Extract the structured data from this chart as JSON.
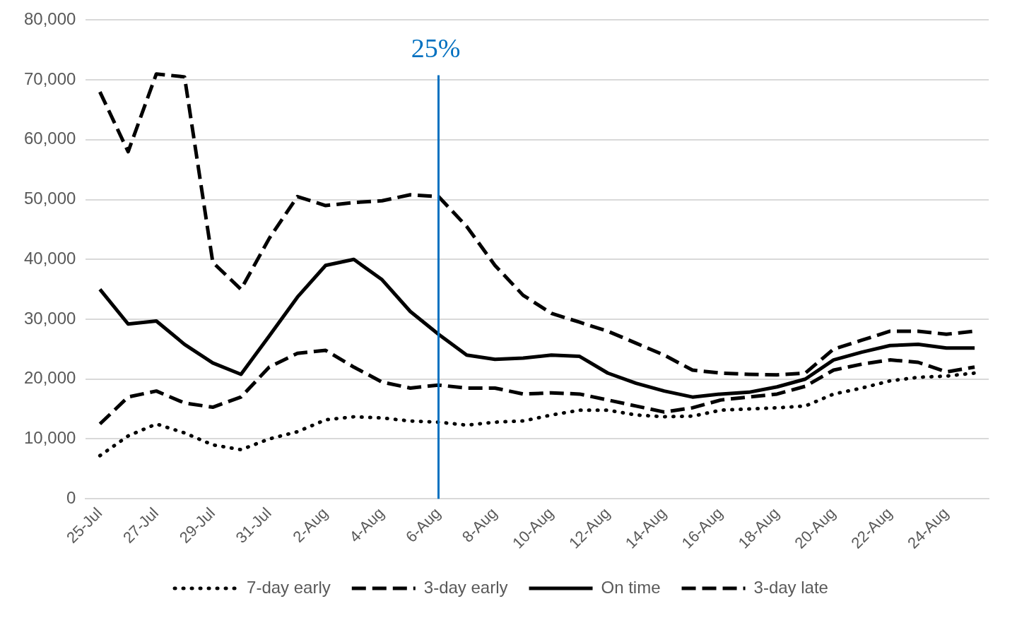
{
  "chart_data": {
    "type": "line",
    "categories": [
      "25-Jul",
      null,
      "27-Jul",
      null,
      "29-Jul",
      null,
      "31-Jul",
      null,
      "2-Aug",
      null,
      "4-Aug",
      null,
      "6-Aug",
      null,
      "8-Aug",
      null,
      "10-Aug",
      null,
      "12-Aug",
      null,
      "14-Aug",
      null,
      "16-Aug",
      null,
      "18-Aug",
      null,
      "20-Aug",
      null,
      "22-Aug",
      null,
      "24-Aug",
      null
    ],
    "series": [
      {
        "name": "7-day early",
        "color": "#000000",
        "line_style": "dotted",
        "values": [
          7200,
          10500,
          12500,
          11000,
          9000,
          8200,
          10000,
          11200,
          13200,
          13700,
          13500,
          13000,
          12800,
          12300,
          12800,
          13000,
          14000,
          14800,
          14800,
          14000,
          13700,
          13800,
          14800,
          15000,
          15200,
          15500,
          17500,
          18500,
          19700,
          20300,
          20500,
          21000
        ]
      },
      {
        "name": "3-day early",
        "color": "#000000",
        "line_style": "dashed",
        "values": [
          12500,
          17000,
          18000,
          16000,
          15300,
          17000,
          22000,
          24300,
          24800,
          22000,
          19500,
          18500,
          19000,
          18500,
          18500,
          17500,
          17700,
          17500,
          16500,
          15500,
          14500,
          15200,
          16500,
          17000,
          17500,
          18800,
          21500,
          22500,
          23200,
          22800,
          21200,
          22000
        ]
      },
      {
        "name": "On time",
        "color": "#000000",
        "line_style": "solid",
        "values": [
          35000,
          29200,
          29700,
          25800,
          22700,
          20800,
          27200,
          33700,
          39000,
          40000,
          36600,
          31300,
          27500,
          24000,
          23300,
          23500,
          24000,
          23800,
          21000,
          19300,
          18000,
          17000,
          17500,
          17800,
          18700,
          20000,
          23200,
          24500,
          25600,
          25800,
          25200,
          25200
        ]
      },
      {
        "name": "3-day late",
        "color": "#000000",
        "line_style": "dashed",
        "values": [
          68000,
          58000,
          71000,
          70500,
          39500,
          35000,
          43500,
          50500,
          49000,
          49500,
          49800,
          50800,
          50500,
          45500,
          39000,
          34000,
          31000,
          29500,
          28000,
          26000,
          24000,
          21500,
          21000,
          20800,
          20700,
          21000,
          25000,
          26500,
          28000,
          28000,
          27500,
          28000
        ]
      }
    ],
    "ylim": [
      0,
      80000
    ],
    "yticks": [
      0,
      {
        "value": 10000,
        "label": "10,000"
      },
      {
        "value": 20000,
        "label": "20,000"
      },
      {
        "value": 30000,
        "label": "30,000"
      },
      {
        "value": 40000,
        "label": "40,000"
      },
      {
        "value": 50000,
        "label": "50,000"
      },
      {
        "value": 60000,
        "label": "60,000"
      },
      {
        "value": 70000,
        "label": "70,000"
      },
      {
        "value": 80000,
        "label": "80,000"
      }
    ],
    "ref_lines": [
      {
        "axis": "x",
        "value": "6-Aug",
        "label": "25%",
        "color": "#0070c0"
      }
    ],
    "grid": "y",
    "legend": "bottom",
    "marker": "none"
  }
}
